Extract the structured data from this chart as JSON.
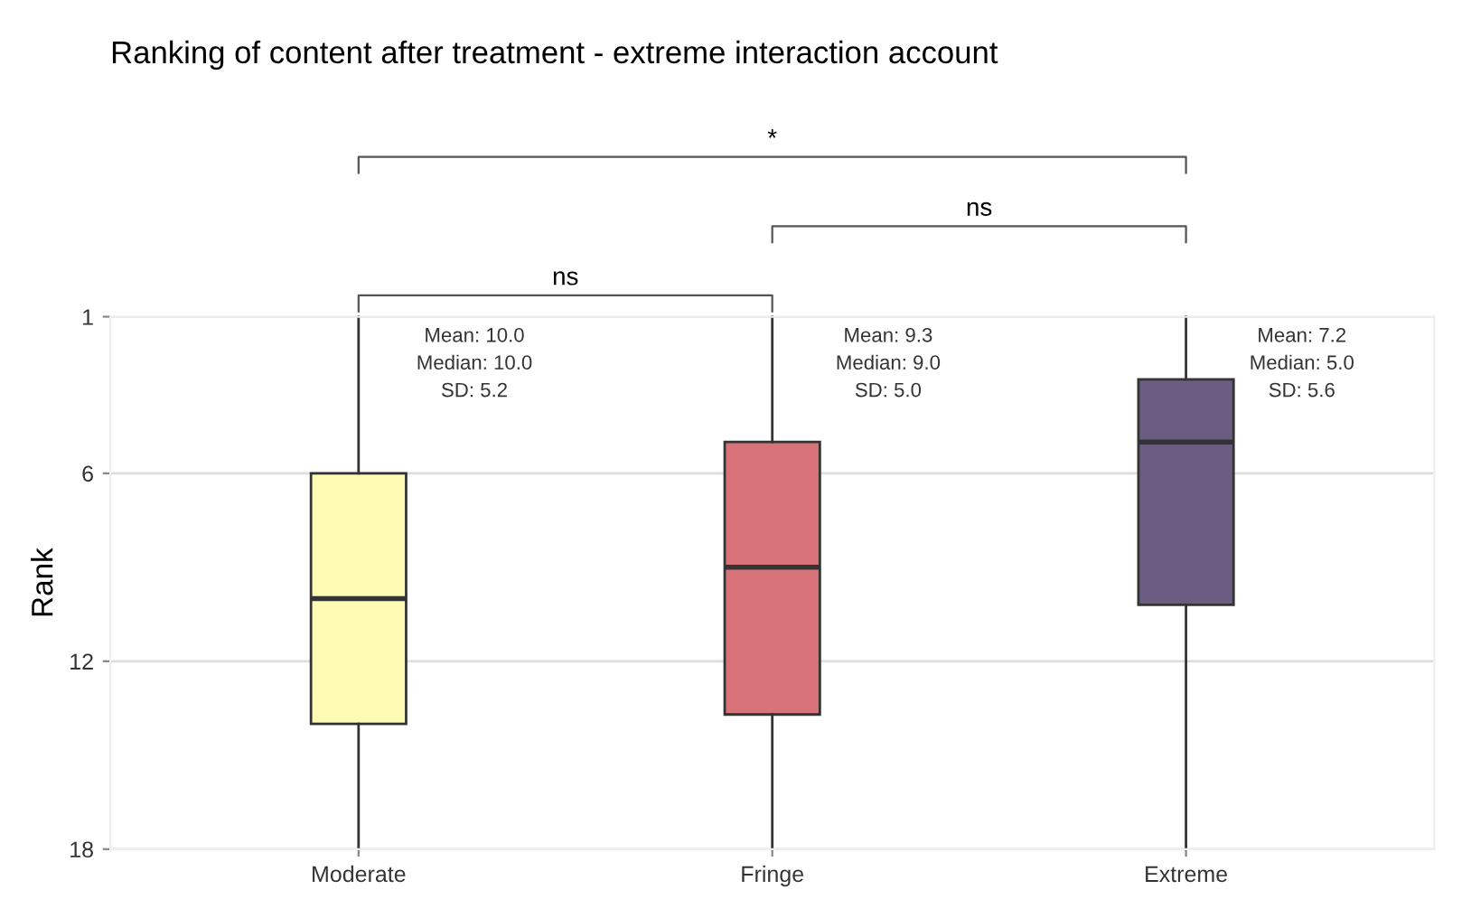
{
  "chart_data": {
    "type": "box",
    "title": "Ranking of content after treatment - extreme interaction account",
    "ylabel": "Rank",
    "categories": [
      "Moderate",
      "Fringe",
      "Extreme"
    ],
    "colors": [
      "#fdfbb4",
      "#d8737a",
      "#6b5d82"
    ],
    "boxes": [
      {
        "low": 1,
        "q1": 6,
        "median": 10,
        "q3": 14,
        "high": 18
      },
      {
        "low": 1,
        "q1": 5,
        "median": 9,
        "q3": 13.7,
        "high": 18
      },
      {
        "low": 1,
        "q1": 3,
        "median": 5,
        "q3": 10.2,
        "high": 18
      }
    ],
    "ylim": [
      18,
      1
    ],
    "yticks": [
      1,
      6,
      12,
      18
    ],
    "grid": "y",
    "annotations": [
      "Mean: 10.0\nMedian: 10.0\nSD: 5.2",
      "Mean: 9.3\nMedian: 9.0\nSD: 5.0",
      "Mean: 7.2\nMedian: 5.0\nSD: 5.6",
      "ns",
      "ns",
      "*"
    ]
  }
}
